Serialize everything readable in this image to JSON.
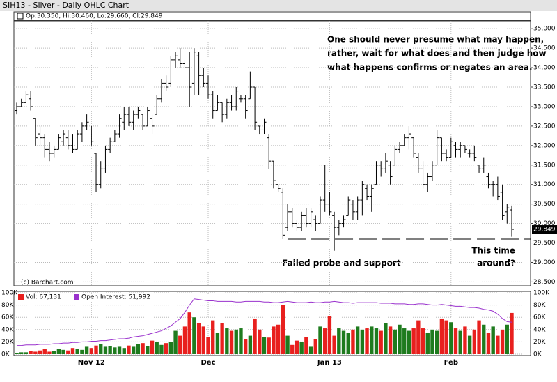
{
  "chart_data": {
    "type": "ohlc",
    "title": "SIH13 - Silver - Daily OHLC Chart",
    "legend_text": "Op:30.350, Hi:30.460, Lo:29.660, Cl:29.849",
    "copyright": "(c) Barchart.com",
    "annotations": [
      "One should never presume what may happen,",
      "rather, wait for what does and then judge how",
      "what happens confirms or negates an area.",
      "Failed probe and support",
      "This time",
      "around?"
    ],
    "support_line": 29.6,
    "up_color": "#1e7b1e",
    "down_color": "#e8201e",
    "oi_color": "#9a32cd",
    "ylim": [
      28.4,
      35.2
    ],
    "yticks": [
      {
        "value": 28.5,
        "label": "28.500"
      },
      {
        "value": 29,
        "label": "29.000"
      },
      {
        "value": 29.5,
        "label": "29.500"
      },
      {
        "value": 30,
        "label": "30.000"
      },
      {
        "value": 30.5,
        "label": "30.500"
      },
      {
        "value": 31,
        "label": "31.000"
      },
      {
        "value": 31.5,
        "label": "31.500"
      },
      {
        "value": 32,
        "label": "32.000"
      },
      {
        "value": 32.5,
        "label": "32.500"
      },
      {
        "value": 33,
        "label": "33.000"
      },
      {
        "value": 33.5,
        "label": "33.500"
      },
      {
        "value": 34,
        "label": "34.000"
      },
      {
        "value": 34.5,
        "label": "34.500"
      },
      {
        "value": 35,
        "label": "35.000"
      }
    ],
    "xticks": [
      {
        "value": 16,
        "label": "Nov 12"
      },
      {
        "value": 41,
        "label": "Dec"
      },
      {
        "value": 67,
        "label": "Jan 13"
      },
      {
        "value": 93,
        "label": "Feb"
      }
    ],
    "ohlc": [
      [
        32.9,
        33.1,
        32.8,
        33.0
      ],
      [
        33.0,
        33.2,
        33.0,
        33.1
      ],
      [
        33.1,
        33.4,
        33.1,
        33.3
      ],
      [
        33.2,
        33.4,
        32.9,
        33.0
      ],
      [
        32.7,
        32.7,
        32.0,
        32.2
      ],
      [
        32.3,
        32.5,
        32.0,
        32.2
      ],
      [
        32.2,
        32.3,
        31.7,
        31.9
      ],
      [
        31.9,
        32.1,
        31.6,
        31.8
      ],
      [
        31.8,
        32.0,
        31.7,
        31.9
      ],
      [
        31.9,
        32.3,
        31.9,
        32.2
      ],
      [
        32.1,
        32.4,
        32.0,
        32.3
      ],
      [
        32.2,
        32.4,
        31.9,
        32.0
      ],
      [
        32.0,
        32.3,
        31.8,
        31.9
      ],
      [
        31.9,
        32.4,
        31.9,
        32.3
      ],
      [
        32.3,
        32.6,
        32.1,
        32.5
      ],
      [
        32.5,
        32.8,
        32.4,
        32.6
      ],
      [
        32.4,
        32.5,
        32.0,
        32.1
      ],
      [
        31.8,
        31.8,
        30.8,
        31.0
      ],
      [
        31.0,
        31.6,
        30.9,
        31.4
      ],
      [
        31.4,
        32.0,
        31.3,
        31.9
      ],
      [
        31.9,
        32.2,
        31.8,
        32.1
      ],
      [
        32.1,
        32.4,
        32.1,
        32.3
      ],
      [
        32.3,
        32.8,
        32.2,
        32.7
      ],
      [
        32.6,
        33.0,
        32.4,
        32.8
      ],
      [
        32.8,
        33.0,
        32.5,
        32.6
      ],
      [
        32.6,
        32.9,
        32.4,
        32.8
      ],
      [
        32.8,
        33.0,
        32.7,
        32.9
      ],
      [
        32.8,
        32.8,
        32.4,
        32.5
      ],
      [
        32.5,
        33.0,
        32.5,
        32.9
      ],
      [
        32.7,
        32.8,
        32.3,
        32.5
      ],
      [
        32.8,
        33.3,
        32.8,
        33.2
      ],
      [
        33.2,
        33.7,
        33.1,
        33.6
      ],
      [
        33.6,
        33.8,
        33.4,
        33.5
      ],
      [
        33.6,
        34.3,
        33.5,
        34.2
      ],
      [
        34.2,
        34.4,
        34.0,
        34.3
      ],
      [
        34.2,
        34.5,
        34.0,
        34.1
      ],
      [
        34.1,
        34.2,
        34.0,
        34.0
      ],
      [
        34.0,
        34.4,
        33.0,
        33.5
      ],
      [
        33.6,
        34.5,
        33.3,
        34.4
      ],
      [
        34.3,
        34.4,
        33.3,
        33.8
      ],
      [
        33.8,
        34.0,
        33.5,
        33.6
      ],
      [
        33.6,
        33.8,
        33.2,
        33.3
      ],
      [
        33.3,
        33.4,
        32.7,
        32.9
      ],
      [
        32.9,
        33.3,
        32.9,
        33.1
      ],
      [
        33.1,
        33.1,
        32.6,
        32.8
      ],
      [
        32.8,
        33.2,
        32.7,
        33.1
      ],
      [
        33.1,
        33.3,
        32.9,
        33.0
      ],
      [
        33.0,
        33.5,
        32.9,
        33.4
      ],
      [
        33.2,
        33.3,
        33.1,
        33.2
      ],
      [
        33.2,
        33.3,
        32.7,
        32.9
      ],
      [
        33.2,
        33.9,
        33.2,
        33.5
      ],
      [
        33.5,
        33.5,
        32.4,
        32.6
      ],
      [
        32.5,
        32.5,
        32.3,
        32.4
      ],
      [
        32.4,
        32.7,
        32.3,
        32.6
      ],
      [
        32.2,
        32.3,
        31.4,
        31.6
      ],
      [
        31.6,
        31.6,
        30.9,
        31.1
      ],
      [
        31.0,
        31.0,
        30.8,
        30.9
      ],
      [
        30.8,
        30.9,
        29.6,
        29.7
      ],
      [
        29.9,
        30.5,
        29.8,
        30.3
      ],
      [
        30.3,
        30.4,
        29.9,
        30.0
      ],
      [
        30.0,
        30.1,
        29.8,
        29.9
      ],
      [
        29.9,
        30.3,
        29.8,
        30.2
      ],
      [
        30.2,
        30.4,
        29.9,
        30.0
      ],
      [
        30.0,
        30.4,
        29.9,
        30.3
      ],
      [
        30.1,
        30.2,
        29.8,
        30.0
      ],
      [
        30.0,
        30.7,
        30.0,
        30.6
      ],
      [
        30.6,
        31.5,
        30.3,
        30.5
      ],
      [
        30.5,
        30.8,
        30.2,
        30.3
      ],
      [
        30.2,
        30.3,
        29.3,
        29.9
      ],
      [
        29.9,
        30.1,
        29.7,
        30.0
      ],
      [
        30.0,
        30.2,
        29.9,
        30.1
      ],
      [
        30.2,
        30.7,
        30.2,
        30.6
      ],
      [
        30.5,
        30.6,
        30.1,
        30.3
      ],
      [
        30.3,
        30.7,
        30.1,
        30.6
      ],
      [
        30.6,
        31.1,
        30.2,
        31.0
      ],
      [
        30.9,
        31.0,
        30.6,
        30.7
      ],
      [
        30.7,
        31.0,
        30.3,
        30.9
      ],
      [
        31.0,
        31.6,
        31.0,
        31.5
      ],
      [
        31.5,
        31.6,
        31.2,
        31.4
      ],
      [
        31.4,
        31.8,
        31.3,
        31.6
      ],
      [
        31.5,
        31.6,
        31.0,
        31.2
      ],
      [
        31.5,
        32.0,
        31.5,
        31.9
      ],
      [
        31.9,
        32.1,
        31.8,
        32.0
      ],
      [
        32.0,
        32.3,
        32.0,
        32.2
      ],
      [
        32.2,
        32.5,
        31.9,
        32.3
      ],
      [
        32.2,
        32.2,
        31.7,
        31.8
      ],
      [
        31.7,
        31.8,
        31.3,
        31.4
      ],
      [
        31.4,
        31.6,
        30.9,
        31.0
      ],
      [
        31.0,
        31.3,
        30.8,
        31.2
      ],
      [
        31.2,
        31.6,
        31.1,
        31.5
      ],
      [
        31.5,
        32.4,
        31.5,
        32.2
      ],
      [
        32.2,
        32.2,
        31.6,
        31.8
      ],
      [
        31.8,
        31.9,
        31.6,
        31.7
      ],
      [
        31.7,
        32.2,
        31.7,
        32.1
      ],
      [
        32.0,
        32.1,
        31.7,
        31.9
      ],
      [
        31.9,
        32.1,
        31.7,
        32.0
      ],
      [
        32.0,
        32.0,
        31.8,
        31.9
      ],
      [
        31.8,
        31.9,
        31.7,
        31.8
      ],
      [
        31.8,
        32.0,
        31.6,
        31.7
      ],
      [
        31.5,
        31.5,
        31.3,
        31.4
      ],
      [
        31.4,
        31.7,
        31.3,
        31.5
      ],
      [
        31.2,
        31.3,
        30.9,
        31.0
      ],
      [
        31.0,
        31.1,
        30.7,
        31.0
      ],
      [
        31.0,
        31.2,
        30.6,
        30.7
      ],
      [
        30.8,
        31.0,
        30.1,
        30.2
      ],
      [
        30.3,
        30.5,
        30.0,
        30.4
      ],
      [
        30.35,
        30.46,
        29.66,
        29.849
      ]
    ],
    "volume_legend": "Vol: 67,131",
    "oi_legend": "Open Interest: 51,992",
    "volume_ylim": [
      0,
      100000
    ],
    "volume_yticks": [
      {
        "value": 0,
        "label": "0K"
      },
      {
        "value": 20000,
        "label": "20K"
      },
      {
        "value": 40000,
        "label": "40K"
      },
      {
        "value": 60000,
        "label": "60K"
      },
      {
        "value": 80000,
        "label": "80K"
      },
      {
        "value": 100000,
        "label": "100K"
      }
    ],
    "volume": [
      2000,
      3000,
      3000,
      5000,
      4000,
      6000,
      8000,
      4000,
      5000,
      8000,
      7000,
      6000,
      10000,
      9000,
      7000,
      12000,
      10000,
      14000,
      16000,
      12000,
      13000,
      11000,
      12000,
      10000,
      14000,
      12000,
      16000,
      18000,
      13000,
      22000,
      20000,
      15000,
      18000,
      20000,
      38000,
      30000,
      45000,
      68000,
      60000,
      50000,
      45000,
      28000,
      55000,
      35000,
      50000,
      42000,
      38000,
      40000,
      42000,
      25000,
      30000,
      58000,
      40000,
      28000,
      27000,
      45000,
      48000,
      80000,
      30000,
      15000,
      22000,
      20000,
      28000,
      12000,
      25000,
      45000,
      42000,
      62000,
      30000,
      42000,
      38000,
      35000,
      40000,
      45000,
      40000,
      42000,
      45000,
      42000,
      38000,
      50000,
      45000,
      40000,
      48000,
      42000,
      38000,
      42000,
      55000,
      42000,
      35000,
      40000,
      38000,
      58000,
      55000,
      52000,
      42000,
      38000,
      45000,
      30000,
      40000,
      55000,
      48000,
      35000,
      45000,
      30000,
      40000,
      48000,
      67131
    ],
    "open_interest": [
      14000,
      14000,
      15000,
      15000,
      15000,
      16000,
      16000,
      16000,
      17000,
      17000,
      18000,
      18000,
      19000,
      19000,
      20000,
      20000,
      21000,
      21000,
      22000,
      22000,
      23000,
      24000,
      25000,
      25000,
      26000,
      28000,
      29000,
      30000,
      32000,
      34000,
      36000,
      38000,
      42000,
      46000,
      52000,
      58000,
      68000,
      80000,
      90000,
      89000,
      88000,
      87000,
      87000,
      86000,
      86000,
      86000,
      86000,
      85000,
      85000,
      86000,
      86000,
      86000,
      86000,
      85000,
      85000,
      84000,
      84000,
      85000,
      86000,
      85000,
      84000,
      84000,
      84000,
      85000,
      84000,
      84000,
      85000,
      85000,
      86000,
      85000,
      84000,
      84000,
      83000,
      84000,
      84000,
      84000,
      84000,
      84000,
      83000,
      83000,
      83000,
      82000,
      82000,
      82000,
      81000,
      81000,
      82000,
      82000,
      81000,
      80000,
      80000,
      81000,
      80000,
      79000,
      78000,
      78000,
      77000,
      76000,
      76000,
      75000,
      73000,
      72000,
      70000,
      65000,
      58000,
      53000,
      51992
    ]
  }
}
